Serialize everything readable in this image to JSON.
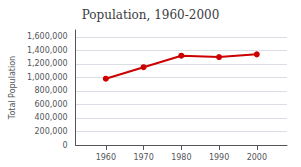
{
  "chart_data": {
    "type": "line",
    "title": "Population, 1960-2000",
    "ylabel": "Total Population",
    "x": [
      1960,
      1970,
      1980,
      1990,
      2000
    ],
    "values": [
      980000,
      1150000,
      1320000,
      1300000,
      1340000
    ],
    "color": "#cc0000",
    "marker": "circle",
    "xlim": [
      1952,
      2008
    ],
    "xticks": [
      1960,
      1970,
      1980,
      1990,
      2000
    ],
    "ylim": [
      0,
      1700000
    ],
    "yticks": [
      0,
      {
        "value": 200000,
        "label": "200,000"
      },
      {
        "value": 400000,
        "label": "400,000"
      },
      {
        "value": 600000,
        "label": "600,000"
      },
      {
        "value": 800000,
        "label": "800,000"
      },
      {
        "value": 1000000,
        "label": "1,000,000"
      },
      {
        "value": 1200000,
        "label": "1,200,000"
      },
      {
        "value": 1400000,
        "label": "1,400,000"
      },
      {
        "value": 1600000,
        "label": "1,600,000"
      }
    ],
    "grid": true
  }
}
